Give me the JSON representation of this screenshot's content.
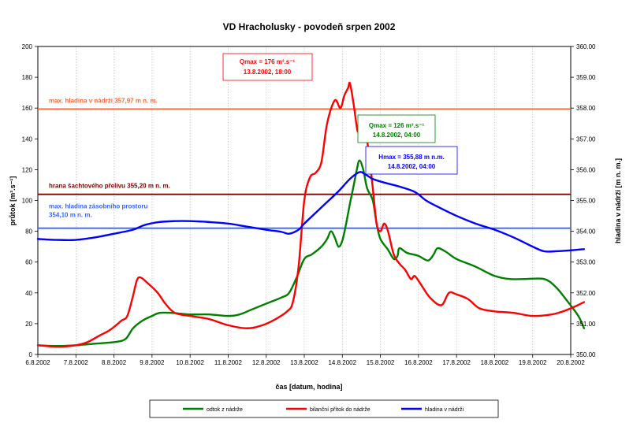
{
  "chart_data": {
    "type": "line",
    "title": "VD Hracholusky - povodeň srpen 2002",
    "xlabel": "čas [datum, hodina]",
    "ylabel_left": "průtok [m³.s⁻¹]",
    "ylabel_right": "hladina v nádrži [m n. m.]",
    "x_ticks": [
      "6.8.2002",
      "7.8.2002",
      "8.8.2002",
      "9.8.2002",
      "10.8.2002",
      "11.8.2002",
      "12.8.2002",
      "13.8.2002",
      "14.8.2002",
      "15.8.2002",
      "16.8.2002",
      "17.8.2002",
      "18.8.2002",
      "19.8.2002",
      "20.8.2002"
    ],
    "xlim_days": [
      6,
      20
    ],
    "ylim_left": [
      0,
      200
    ],
    "ylim_right": [
      350,
      360
    ],
    "y_left_ticks": [
      "0",
      "20",
      "40",
      "60",
      "80",
      "100",
      "120",
      "140",
      "160",
      "180",
      "200"
    ],
    "y_right_ticks": [
      "350.00",
      "351.00",
      "352.00",
      "353.00",
      "354.00",
      "355.00",
      "356.00",
      "357.00",
      "358.00",
      "359.00",
      "360.00"
    ],
    "series": [
      {
        "name": "odtok z nádrže",
        "color": "#008000",
        "axis": "left",
        "points": [
          [
            6.0,
            6
          ],
          [
            6.5,
            5.5
          ],
          [
            7.0,
            6
          ],
          [
            7.5,
            7
          ],
          [
            8.0,
            8
          ],
          [
            8.3,
            10
          ],
          [
            8.5,
            17
          ],
          [
            8.75,
            22
          ],
          [
            9.0,
            25
          ],
          [
            9.2,
            27
          ],
          [
            9.5,
            27
          ],
          [
            10,
            26
          ],
          [
            10.5,
            26
          ],
          [
            11,
            25
          ],
          [
            11.3,
            26
          ],
          [
            11.6,
            29
          ],
          [
            12,
            33
          ],
          [
            12.4,
            37
          ],
          [
            12.6,
            40
          ],
          [
            12.8,
            50
          ],
          [
            13.0,
            62
          ],
          [
            13.2,
            65
          ],
          [
            13.45,
            70
          ],
          [
            13.6,
            75
          ],
          [
            13.7,
            80
          ],
          [
            13.8,
            76
          ],
          [
            13.9,
            70
          ],
          [
            14.0,
            74
          ],
          [
            14.1,
            85
          ],
          [
            14.2,
            98
          ],
          [
            14.3,
            110
          ],
          [
            14.38,
            120
          ],
          [
            14.45,
            126
          ],
          [
            14.55,
            120
          ],
          [
            14.65,
            108
          ],
          [
            14.8,
            100
          ],
          [
            14.9,
            85
          ],
          [
            15.0,
            75
          ],
          [
            15.2,
            68
          ],
          [
            15.35,
            62
          ],
          [
            15.45,
            64
          ],
          [
            15.5,
            69
          ],
          [
            15.7,
            66
          ],
          [
            16.0,
            64
          ],
          [
            16.25,
            61
          ],
          [
            16.4,
            65
          ],
          [
            16.5,
            69
          ],
          [
            16.7,
            67
          ],
          [
            17.0,
            62
          ],
          [
            17.5,
            57
          ],
          [
            18.0,
            51
          ],
          [
            18.4,
            49
          ],
          [
            18.8,
            49
          ],
          [
            19.3,
            49
          ],
          [
            19.6,
            44
          ],
          [
            19.9,
            35
          ],
          [
            20.2,
            25
          ],
          [
            20.35,
            17
          ]
        ]
      },
      {
        "name": "bilanční přítok do nádrže",
        "color": "#ff0000",
        "axis": "left",
        "points": [
          [
            6.0,
            6
          ],
          [
            6.5,
            5
          ],
          [
            7.0,
            6
          ],
          [
            7.3,
            8
          ],
          [
            7.6,
            12
          ],
          [
            7.9,
            16
          ],
          [
            8.2,
            22
          ],
          [
            8.35,
            25
          ],
          [
            8.5,
            38
          ],
          [
            8.6,
            48
          ],
          [
            8.7,
            50
          ],
          [
            8.9,
            46
          ],
          [
            9.15,
            40
          ],
          [
            9.35,
            33
          ],
          [
            9.6,
            27
          ],
          [
            10.0,
            25
          ],
          [
            10.5,
            23
          ],
          [
            11.0,
            19
          ],
          [
            11.5,
            17
          ],
          [
            11.9,
            19
          ],
          [
            12.25,
            23
          ],
          [
            12.55,
            28
          ],
          [
            12.7,
            34
          ],
          [
            12.85,
            57
          ],
          [
            13.0,
            100
          ],
          [
            13.15,
            115
          ],
          [
            13.3,
            118
          ],
          [
            13.45,
            125
          ],
          [
            13.6,
            150
          ],
          [
            13.8,
            165
          ],
          [
            13.95,
            160
          ],
          [
            14.05,
            168
          ],
          [
            14.15,
            173
          ],
          [
            14.2,
            176
          ],
          [
            14.3,
            162
          ],
          [
            14.4,
            145
          ],
          [
            14.45,
            150
          ],
          [
            14.5,
            152
          ],
          [
            14.6,
            146
          ],
          [
            14.7,
            130
          ],
          [
            14.8,
            108
          ],
          [
            14.9,
            85
          ],
          [
            15.0,
            80
          ],
          [
            15.1,
            85
          ],
          [
            15.2,
            80
          ],
          [
            15.35,
            65
          ],
          [
            15.5,
            59
          ],
          [
            15.65,
            55
          ],
          [
            15.8,
            49
          ],
          [
            15.9,
            51
          ],
          [
            16.05,
            46
          ],
          [
            16.3,
            37
          ],
          [
            16.6,
            32
          ],
          [
            16.8,
            40
          ],
          [
            17.0,
            39
          ],
          [
            17.3,
            36
          ],
          [
            17.6,
            30
          ],
          [
            18.0,
            28
          ],
          [
            18.5,
            27
          ],
          [
            19.0,
            25
          ],
          [
            19.5,
            26
          ],
          [
            19.8,
            28
          ],
          [
            20.1,
            31
          ],
          [
            20.35,
            34
          ]
        ]
      },
      {
        "name": "hladina v nádrži",
        "color": "#0000ff",
        "axis": "right",
        "points": [
          [
            6.0,
            353.75
          ],
          [
            6.5,
            353.72
          ],
          [
            7.0,
            353.72
          ],
          [
            7.5,
            353.8
          ],
          [
            8.0,
            353.92
          ],
          [
            8.5,
            354.05
          ],
          [
            8.8,
            354.2
          ],
          [
            9.2,
            354.3
          ],
          [
            9.6,
            354.33
          ],
          [
            10.0,
            354.33
          ],
          [
            10.5,
            354.3
          ],
          [
            11.0,
            354.25
          ],
          [
            11.5,
            354.15
          ],
          [
            12.0,
            354.05
          ],
          [
            12.4,
            353.98
          ],
          [
            12.6,
            353.92
          ],
          [
            12.85,
            354.05
          ],
          [
            13.0,
            354.25
          ],
          [
            13.3,
            354.6
          ],
          [
            13.6,
            354.95
          ],
          [
            13.9,
            355.3
          ],
          [
            14.2,
            355.7
          ],
          [
            14.45,
            355.92
          ],
          [
            14.6,
            355.85
          ],
          [
            14.8,
            355.7
          ],
          [
            15.1,
            355.58
          ],
          [
            15.5,
            355.45
          ],
          [
            15.9,
            355.28
          ],
          [
            16.2,
            355.0
          ],
          [
            16.5,
            354.8
          ],
          [
            17.0,
            354.5
          ],
          [
            17.5,
            354.25
          ],
          [
            18.0,
            354.05
          ],
          [
            18.5,
            353.8
          ],
          [
            19.0,
            353.5
          ],
          [
            19.3,
            353.35
          ],
          [
            19.6,
            353.35
          ],
          [
            20.0,
            353.38
          ],
          [
            20.35,
            353.42
          ]
        ]
      }
    ],
    "reference_lines": [
      {
        "label": "max. hladina v nádrži 357,97 m n. m.",
        "level": 357.97,
        "axis": "right",
        "color": "#ff6633"
      },
      {
        "label": "hrana šachtového přelivu 355,20 m n. m.",
        "level": 355.2,
        "axis": "right",
        "color": "#800000"
      },
      {
        "label_line1": "max. hladina zásobního prostoru",
        "label_line2": "354,10 m n. m.",
        "level": 354.1,
        "axis": "right",
        "color": "#3366ff"
      }
    ],
    "annotations": [
      {
        "line1": "Qmax = 176 m³.s⁻¹",
        "line2": "13.8.2002, 18:00",
        "color": "#ff0000"
      },
      {
        "line1": "Qmax = 126 m³.s⁻¹",
        "line2": "14.8.2002, 04:00",
        "color": "#008000"
      },
      {
        "line1": "Hmax = 355,88 m n.m.",
        "line2": "14.8.2002, 04:00",
        "color": "#0000ff"
      }
    ],
    "legend_placement": "bottom",
    "grid": "vertical"
  }
}
